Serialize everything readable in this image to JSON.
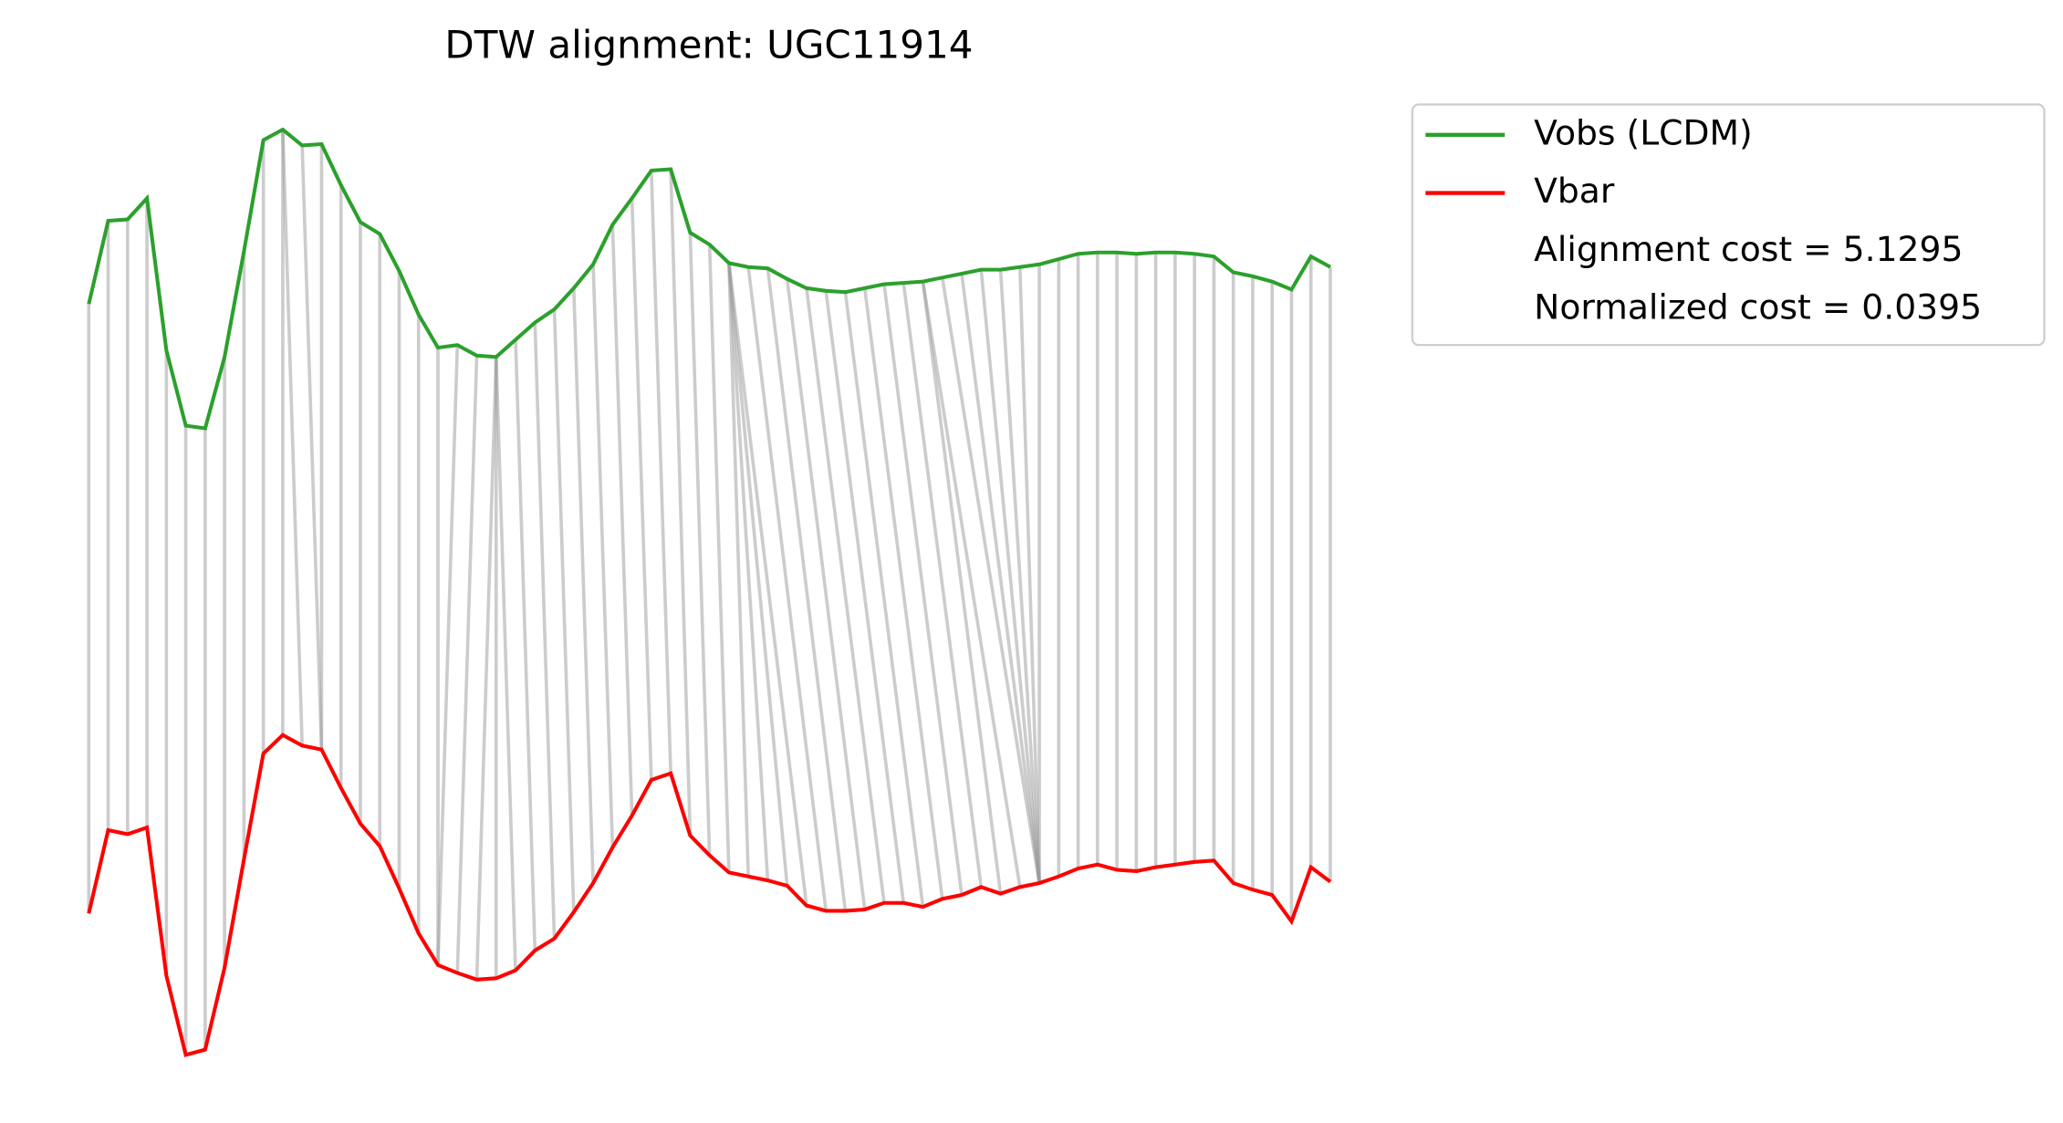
{
  "chart_data": {
    "type": "dtw",
    "title": "DTW alignment: UGC11914",
    "series": [
      {
        "name": "Vobs (LCDM)",
        "color": "#2ca02c",
        "values": [
          620,
          683,
          684,
          700,
          585,
          528,
          526,
          580,
          660,
          744,
          752,
          740,
          741,
          710,
          682,
          673,
          645,
          612,
          587,
          589,
          581,
          580,
          593,
          606,
          616,
          632,
          650,
          680,
          700,
          721,
          722,
          674,
          665,
          651,
          648,
          647,
          639,
          632,
          630,
          629,
          632,
          635,
          636,
          637,
          640,
          643,
          646,
          646,
          648,
          650,
          654,
          658,
          659,
          659,
          658,
          659,
          659,
          658,
          656,
          644,
          641,
          637,
          631,
          656,
          648
        ]
      },
      {
        "name": "Vbar",
        "color": "#ff0000",
        "values": [
          159,
          222,
          219,
          224,
          112,
          52,
          56,
          118,
          200,
          280,
          294,
          286,
          283,
          254,
          227,
          210,
          178,
          144,
          120,
          114,
          109,
          110,
          116,
          131,
          140,
          160,
          182,
          209,
          233,
          260,
          265,
          218,
          203,
          190,
          187,
          184,
          180,
          165,
          161,
          161,
          162,
          167,
          167,
          164,
          170,
          173,
          179,
          174,
          179,
          182,
          187,
          193,
          196,
          192,
          191,
          194,
          196,
          198,
          199,
          182,
          177,
          173,
          153,
          194,
          183
        ]
      }
    ],
    "alignment": [
      [
        0,
        0
      ],
      [
        1,
        1
      ],
      [
        2,
        2
      ],
      [
        3,
        3
      ],
      [
        4,
        4
      ],
      [
        5,
        5
      ],
      [
        6,
        6
      ],
      [
        7,
        7
      ],
      [
        8,
        8
      ],
      [
        9,
        9
      ],
      [
        10,
        10
      ],
      [
        10,
        11
      ],
      [
        11,
        12
      ],
      [
        12,
        12
      ],
      [
        13,
        13
      ],
      [
        14,
        14
      ],
      [
        15,
        15
      ],
      [
        16,
        16
      ],
      [
        17,
        17
      ],
      [
        18,
        18
      ],
      [
        19,
        18
      ],
      [
        20,
        19
      ],
      [
        21,
        20
      ],
      [
        21,
        21
      ],
      [
        21,
        22
      ],
      [
        22,
        23
      ],
      [
        23,
        24
      ],
      [
        24,
        25
      ],
      [
        25,
        26
      ],
      [
        26,
        27
      ],
      [
        27,
        28
      ],
      [
        28,
        29
      ],
      [
        29,
        30
      ],
      [
        30,
        31
      ],
      [
        31,
        32
      ],
      [
        32,
        33
      ],
      [
        33,
        34
      ],
      [
        33,
        35
      ],
      [
        33,
        36
      ],
      [
        33,
        37
      ],
      [
        34,
        38
      ],
      [
        35,
        39
      ],
      [
        36,
        40
      ],
      [
        37,
        41
      ],
      [
        38,
        42
      ],
      [
        39,
        43
      ],
      [
        40,
        44
      ],
      [
        41,
        45
      ],
      [
        42,
        46
      ],
      [
        43,
        47
      ],
      [
        43,
        48
      ],
      [
        44,
        49
      ],
      [
        45,
        49
      ],
      [
        46,
        49
      ],
      [
        47,
        49
      ],
      [
        48,
        49
      ],
      [
        49,
        49
      ],
      [
        50,
        50
      ],
      [
        51,
        51
      ],
      [
        52,
        52
      ],
      [
        53,
        53
      ],
      [
        54,
        54
      ],
      [
        55,
        55
      ],
      [
        56,
        56
      ],
      [
        57,
        57
      ],
      [
        58,
        58
      ],
      [
        59,
        59
      ],
      [
        60,
        60
      ],
      [
        61,
        61
      ],
      [
        62,
        62
      ],
      [
        63,
        63
      ],
      [
        64,
        64
      ]
    ],
    "alignment_color": "#999999",
    "legend_notes": [
      "Alignment cost = 5.1295",
      "Normalized cost = 0.0395"
    ],
    "legend": "upper right outside"
  }
}
